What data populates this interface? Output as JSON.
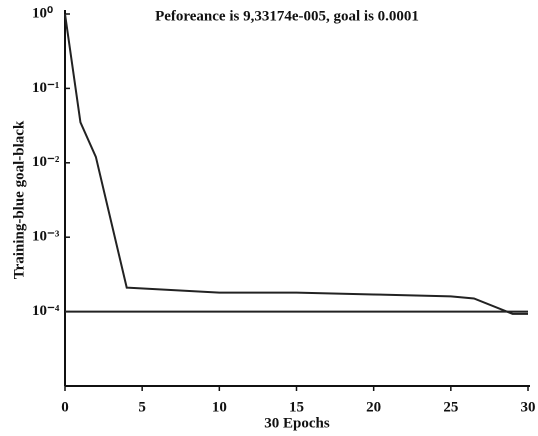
{
  "chart_data": {
    "type": "line",
    "title": "Peforeance is 9,33174e-005, goal is 0.0001",
    "xlabel": "30 Epochs",
    "ylabel": "Training-blue goal-black",
    "x": [
      0,
      1,
      2,
      4,
      10,
      15,
      20,
      25,
      26.5,
      29,
      30
    ],
    "series": [
      {
        "color": "#222222",
        "values": [
          1,
          0.035,
          0.012,
          0.00021,
          0.00018,
          0.00018,
          0.00017,
          0.00016,
          0.00015,
          9.33e-05,
          9.33e-05
        ]
      },
      {
        "color": "#222222",
        "values": [
          0.0001,
          0.0001,
          0.0001,
          0.0001,
          0.0001,
          0.0001,
          0.0001,
          0.0001,
          0.0001,
          0.0001,
          0.0001
        ]
      }
    ],
    "xlim": [
      0,
      30
    ],
    "xticks": [
      0,
      5,
      10,
      15,
      20,
      25,
      30
    ],
    "yscale": "log",
    "ylim": [
      1e-05,
      1
    ],
    "yticks": [
      {
        "value": 1,
        "label": "10⁰"
      },
      {
        "value": 0.1,
        "label": "10⁻¹"
      },
      {
        "value": 0.01,
        "label": "10⁻²"
      },
      {
        "value": 0.001,
        "label": "10⁻³"
      },
      {
        "value": 0.0001,
        "label": "10⁻⁴"
      }
    ],
    "grid": false
  }
}
